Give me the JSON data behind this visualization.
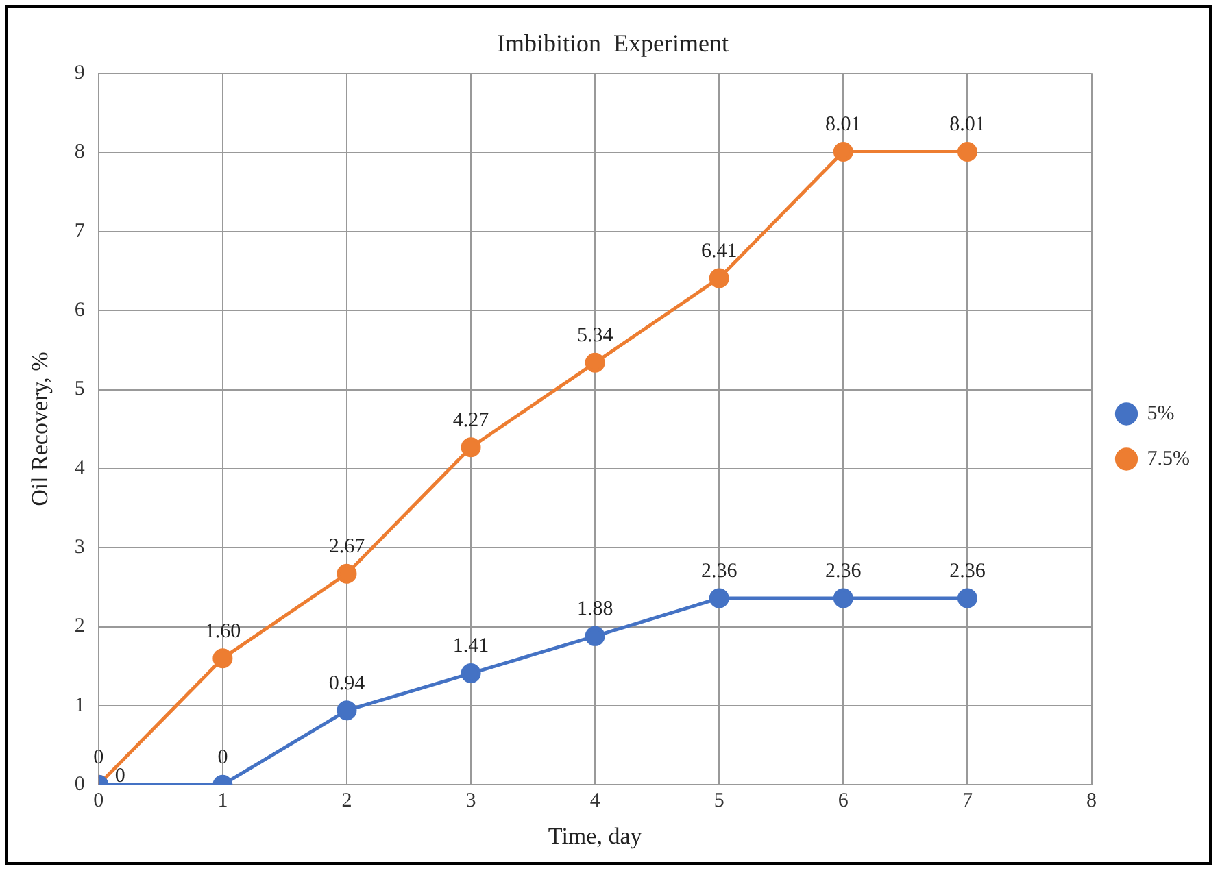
{
  "chart_data": {
    "type": "line",
    "title": "Imbibition  Experiment",
    "xlabel": "Time, day",
    "ylabel": "Oil Recovery, %",
    "xlim": [
      0,
      8
    ],
    "xticks": [
      0,
      1,
      2,
      3,
      4,
      5,
      6,
      7,
      8
    ],
    "ylim": [
      0,
      9
    ],
    "yticks": [
      0,
      1,
      2,
      3,
      4,
      5,
      6,
      7,
      8,
      9
    ],
    "grid": true,
    "legend": "right",
    "marker": "circle",
    "line_style": "solid",
    "series": [
      {
        "name": "5%",
        "color": "#4472c4",
        "x": [
          0,
          1,
          2,
          3,
          4,
          5,
          6,
          7
        ],
        "values": [
          0,
          0,
          0.94,
          1.41,
          1.88,
          2.36,
          2.36,
          2.36
        ],
        "value_labels": [
          "0",
          "0",
          "0.94",
          "1.41",
          "1.88",
          "2.36",
          "2.36",
          "2.36"
        ]
      },
      {
        "name": "7.5%",
        "color": "#ed7d31",
        "x": [
          0,
          1,
          2,
          3,
          4,
          5,
          6,
          7
        ],
        "values": [
          0,
          1.6,
          2.67,
          4.27,
          5.34,
          6.41,
          8.01,
          8.01
        ],
        "value_labels": [
          "0",
          "1.60",
          "2.67",
          "4.27",
          "5.34",
          "6.41",
          "8.01",
          "8.01"
        ]
      }
    ]
  }
}
